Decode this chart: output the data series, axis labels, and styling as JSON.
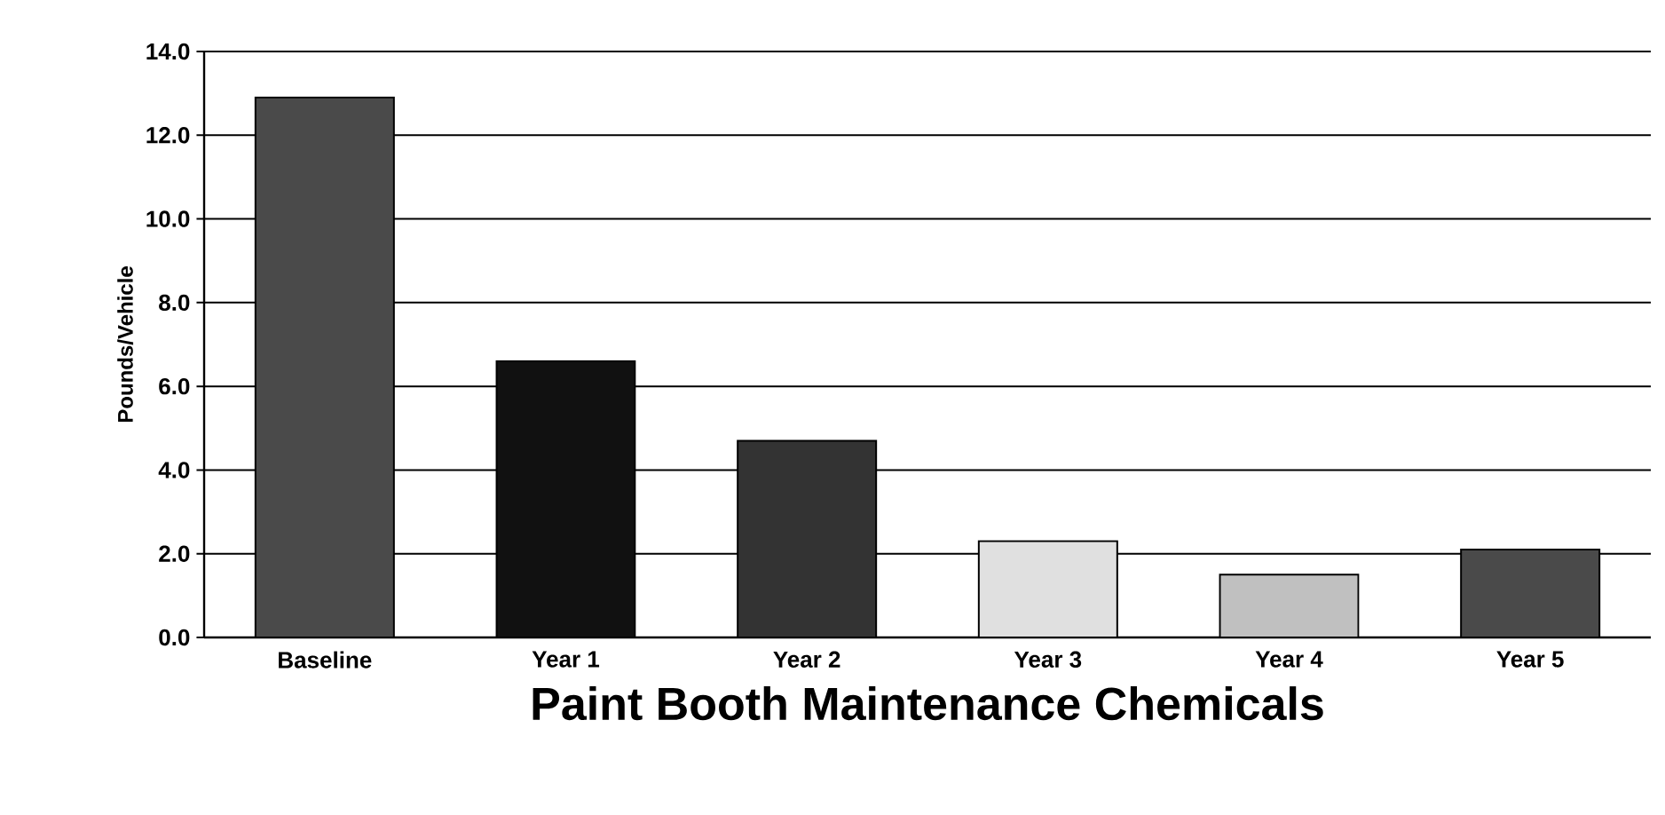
{
  "chart_data": {
    "type": "bar",
    "title": "Paint Booth Maintenance Chemicals",
    "ylabel": "Pounds/Vehicle",
    "categories": [
      "Baseline",
      "Year 1",
      "Year 2",
      "Year 3",
      "Year 4",
      "Year 5"
    ],
    "values": [
      12.9,
      6.6,
      4.7,
      2.3,
      1.5,
      2.1
    ],
    "colors": [
      "#4a4a4a",
      "#111111",
      "#333333",
      "#e0e0e0",
      "#c0c0c0",
      "#4a4a4a"
    ],
    "ylim": [
      0,
      14
    ],
    "yticks": [
      {
        "value": 0,
        "label": "0.0"
      },
      {
        "value": 2,
        "label": "2.0"
      },
      {
        "value": 4,
        "label": "4.0"
      },
      {
        "value": 6,
        "label": "6.0"
      },
      {
        "value": 8,
        "label": "8.0"
      },
      {
        "value": 10,
        "label": "10.0"
      },
      {
        "value": 12,
        "label": "12.0"
      },
      {
        "value": 14,
        "label": "14.0"
      }
    ],
    "grid": "y"
  }
}
